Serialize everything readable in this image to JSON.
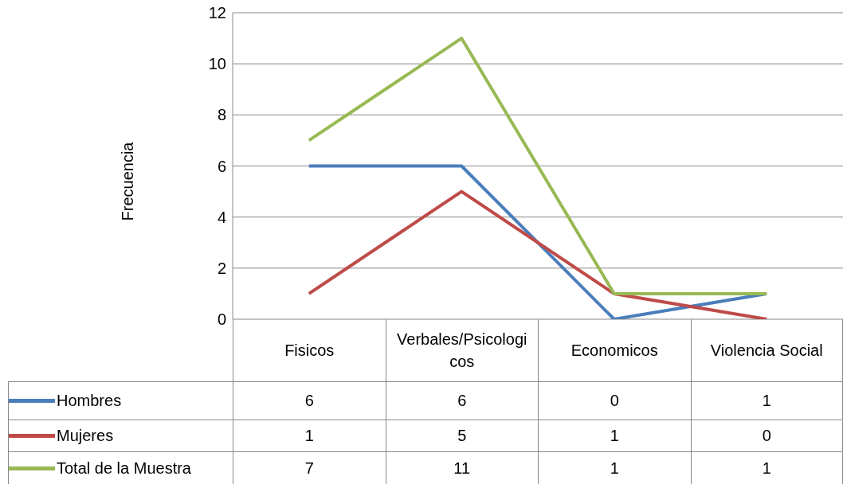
{
  "chart_data": {
    "type": "line",
    "ylabel": "Frecuencia",
    "categories": [
      "Fisicos",
      "Verbales/Psicologicos",
      "Economicos",
      "Violencia Social"
    ],
    "series": [
      {
        "name": "Hombres",
        "color": "#4a7ebb",
        "values": [
          6,
          6,
          0,
          1
        ]
      },
      {
        "name": "Mujeres",
        "color": "#be4b48",
        "values": [
          1,
          5,
          1,
          0
        ]
      },
      {
        "name": "Total de la Muestra",
        "color": "#98b954",
        "values": [
          7,
          11,
          1,
          1
        ]
      }
    ],
    "ylim": [
      0,
      12
    ],
    "yticks": [
      0,
      2,
      4,
      6,
      8,
      10,
      12
    ],
    "grid": "y",
    "legend": "bottom",
    "data_labels": true,
    "marker": "none",
    "line_style": "solid"
  }
}
